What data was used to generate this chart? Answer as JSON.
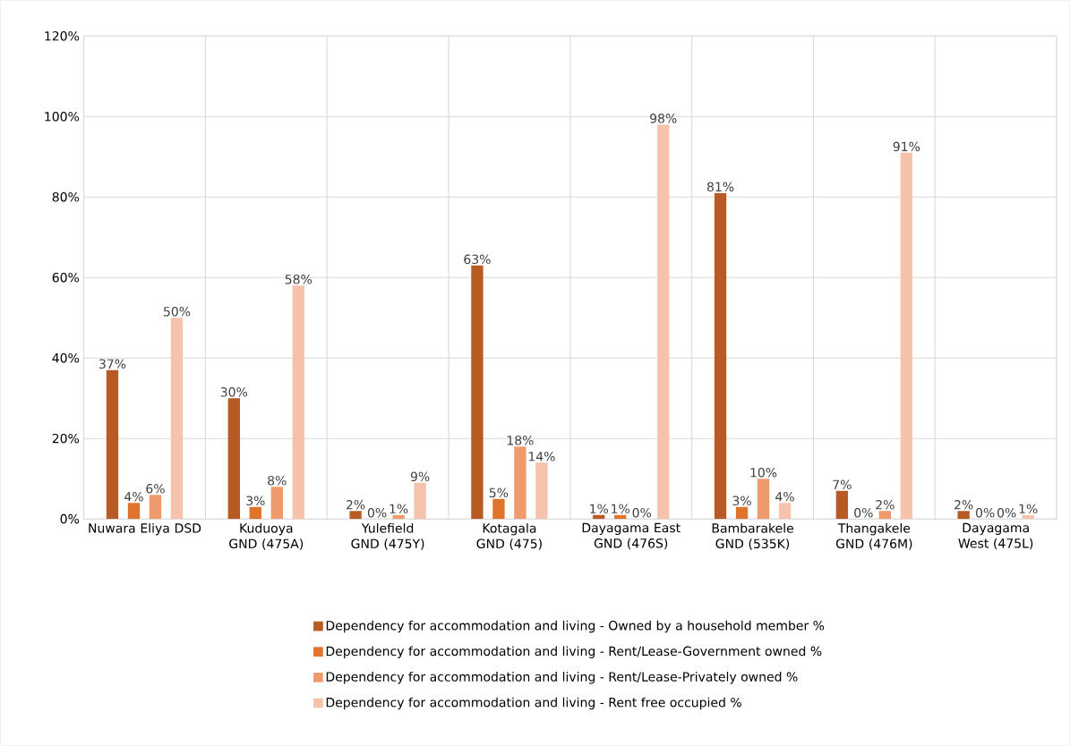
{
  "chart_data": {
    "type": "bar",
    "categories": [
      "Nuwara Eliya DSD",
      "Kuduoya GND (475A)",
      "Yulefield GND (475Y)",
      "Kotagala GND (475)",
      "Dayagama East GND (476S)",
      "Bambarakele GND (535K)",
      "Thangakele GND (476M)",
      "Dayagama West (475L)"
    ],
    "series": [
      {
        "name": "Dependency for accommodation and living - Owned by a household member %",
        "color": "#b85a24",
        "values": [
          37,
          30,
          2,
          63,
          1,
          81,
          7,
          2
        ],
        "value_labels": [
          "37%",
          "30%",
          "2%",
          "63%",
          "1%",
          "81%",
          "7%",
          "2%"
        ]
      },
      {
        "name": "Dependency for accommodation and living - Rent/Lease-Government owned %",
        "color": "#e0742c",
        "values": [
          4,
          3,
          0,
          5,
          1,
          3,
          0,
          0
        ],
        "value_labels": [
          "4%",
          "3%",
          "0%",
          "5%",
          "1%",
          "3%",
          "0%",
          "0%"
        ]
      },
      {
        "name": "Dependency for accommodation and living - Rent/Lease-Privately owned %",
        "color": "#ee9a6c",
        "values": [
          6,
          8,
          1,
          18,
          0,
          10,
          2,
          0
        ],
        "value_labels": [
          "6%",
          "8%",
          "1%",
          "18%",
          "0%",
          "10%",
          "2%",
          "0%"
        ]
      },
      {
        "name": "Dependency for accommodation and living - Rent free occupied %",
        "color": "#f5c2ab",
        "values": [
          50,
          58,
          9,
          14,
          98,
          4,
          91,
          1
        ],
        "value_labels": [
          "50%",
          "58%",
          "9%",
          "14%",
          "98%",
          "4%",
          "91%",
          "1%"
        ]
      }
    ],
    "ylim": [
      0,
      120
    ],
    "yticks": [
      {
        "value": 0,
        "label": "0%"
      },
      {
        "value": 20,
        "label": "20%"
      },
      {
        "value": 40,
        "label": "40%"
      },
      {
        "value": 60,
        "label": "60%"
      },
      {
        "value": 80,
        "label": "80%"
      },
      {
        "value": 100,
        "label": "100%"
      },
      {
        "value": 120,
        "label": "120%"
      }
    ],
    "grid": true,
    "legend": "bottom"
  }
}
